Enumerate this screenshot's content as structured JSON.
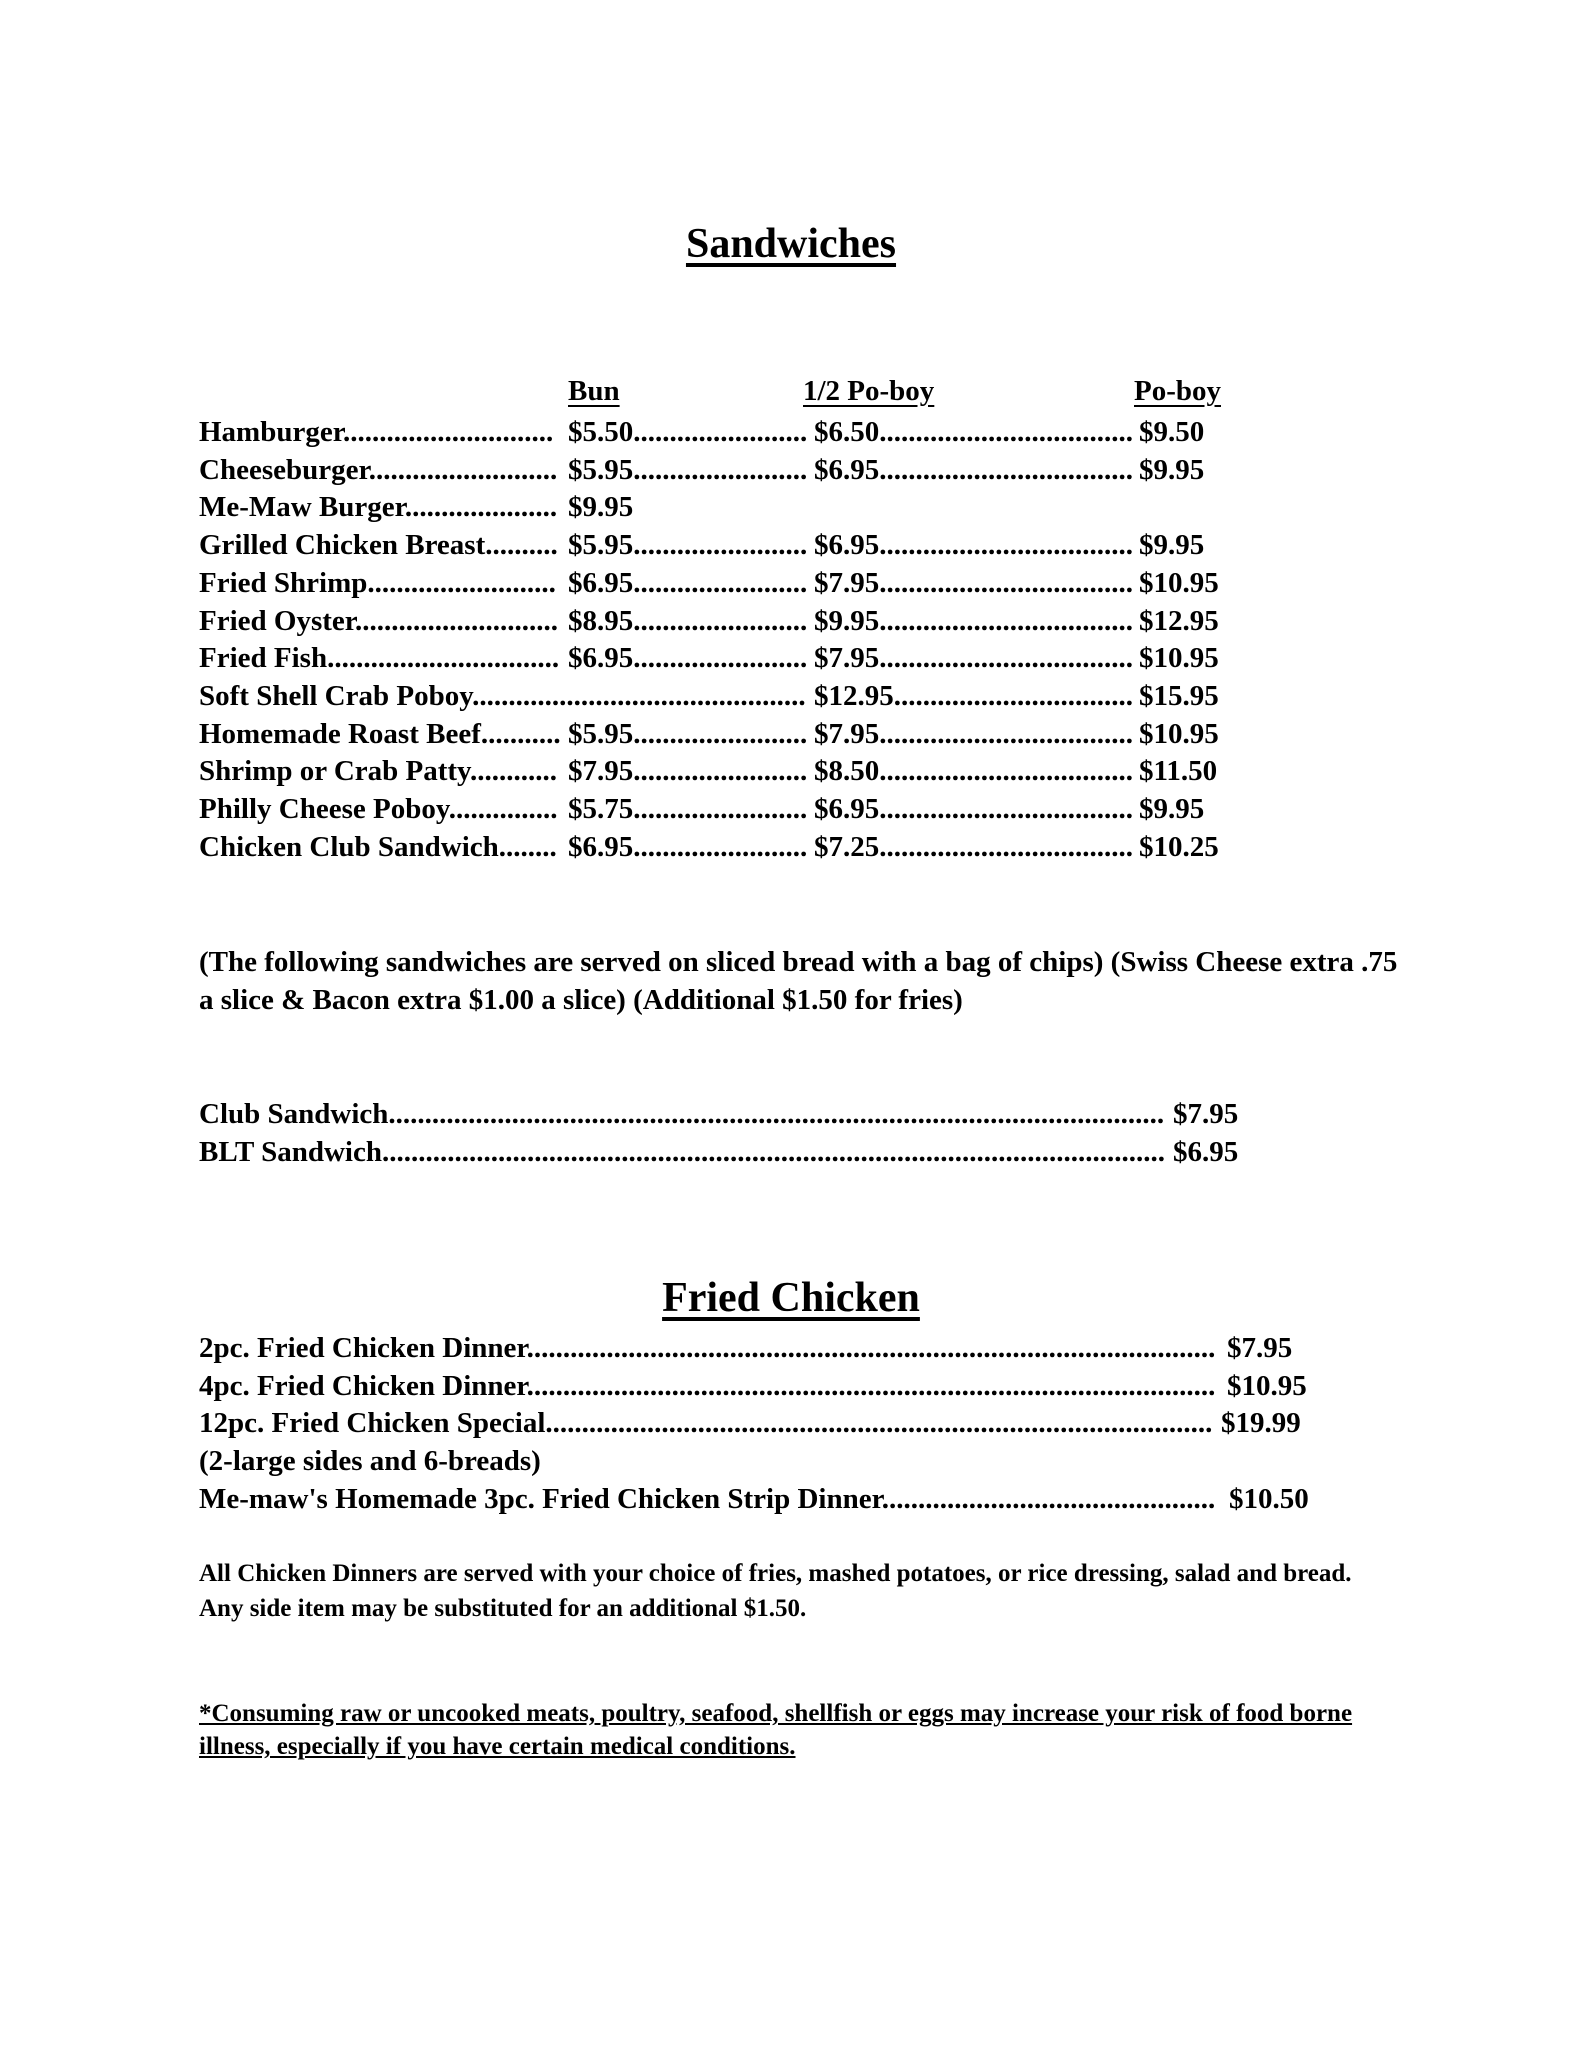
{
  "sandwiches": {
    "title": "Sandwiches",
    "columns": [
      "Bun",
      "1/2 Po-boy",
      "Po-boy"
    ],
    "items": [
      {
        "name": "Hamburger",
        "bun": "$5.50",
        "half": "$6.50",
        "poboy": "$9.50"
      },
      {
        "name": "Cheeseburger",
        "bun": "$5.95",
        "half": "$6.95",
        "poboy": "$9.95"
      },
      {
        "name": "Me-Maw Burger",
        "bun": "$9.95",
        "half": null,
        "poboy": null
      },
      {
        "name": "Grilled Chicken Breast",
        "bun": "$5.95",
        "half": "$6.95",
        "poboy": "$9.95"
      },
      {
        "name": "Fried Shrimp",
        "bun": "$6.95",
        "half": "$7.95",
        "poboy": "$10.95"
      },
      {
        "name": "Fried Oyster",
        "bun": "$8.95",
        "half": "$9.95",
        "poboy": "$12.95"
      },
      {
        "name": "Fried Fish",
        "bun": "$6.95",
        "half": "$7.95",
        "poboy": "$10.95"
      },
      {
        "name": "Soft Shell Crab Poboy",
        "bun": null,
        "half": "$12.95",
        "poboy": "$15.95"
      },
      {
        "name": "Homemade Roast Beef",
        "bun": "$5.95",
        "half": "$7.95",
        "poboy": "$10.95"
      },
      {
        "name": "Shrimp or Crab Patty",
        "bun": "$7.95",
        "half": "$8.50",
        "poboy": "$11.50"
      },
      {
        "name": "Philly Cheese Poboy",
        "bun": "$5.75",
        "half": "$6.95",
        "poboy": "$9.95"
      },
      {
        "name": "Chicken Club Sandwich",
        "bun": "$6.95",
        "half": "$7.25",
        "poboy": "$10.25"
      }
    ],
    "sliced_note": "(The following sandwiches are served on sliced bread with a bag of chips) (Swiss Cheese extra .75 a slice & Bacon extra $1.00 a slice) (Additional $1.50 for fries)",
    "sliced_items": [
      {
        "name": "Club Sandwich",
        "price": "$7.95"
      },
      {
        "name": "BLT Sandwich",
        "price": "$6.95"
      }
    ]
  },
  "fried_chicken": {
    "title": "Fried Chicken",
    "items": [
      {
        "name": "2pc. Fried Chicken Dinner",
        "price": "$7.95"
      },
      {
        "name": "4pc. Fried Chicken Dinner",
        "price": "$10.95"
      },
      {
        "name": "12pc. Fried Chicken Special",
        "price": "$19.99"
      },
      {
        "name": "(2-large sides and 6-breads)",
        "price": null
      },
      {
        "name": "Me-maw's Homemade 3pc. Fried Chicken Strip Dinner",
        "price": "$10.50"
      }
    ],
    "note": "All Chicken Dinners are served with your choice of fries, mashed potatoes, or rice dressing, salad and bread. Any side item may be substituted for an additional $1.50.",
    "disclaimer": "*Consuming raw or uncooked meats, poultry, seafood, shellfish or eggs may increase your risk of food borne illness, especially if you have certain medical conditions."
  }
}
